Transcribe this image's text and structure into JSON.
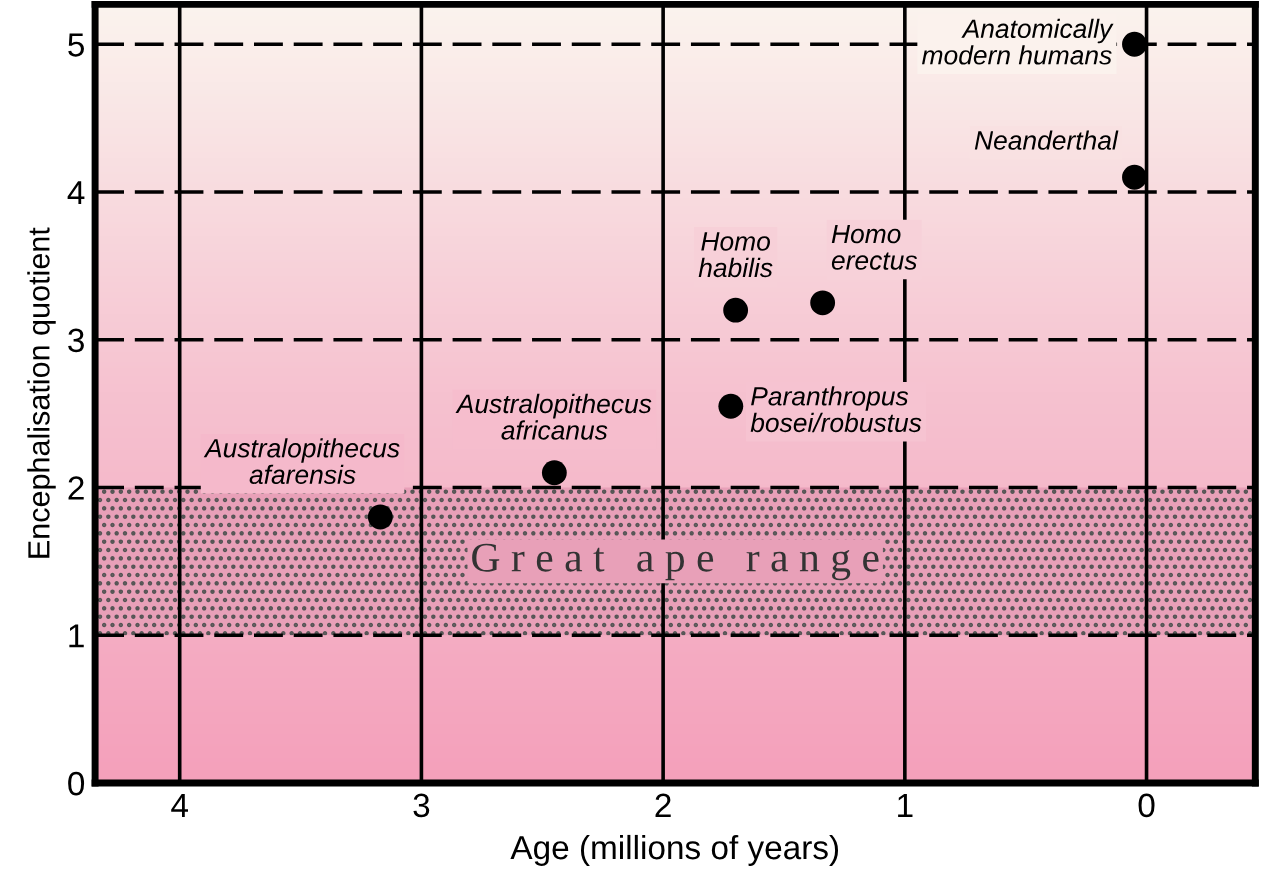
{
  "chart_data": {
    "type": "scatter",
    "xlabel": "Age (millions of years)",
    "ylabel": "Encephalisation quotient",
    "x": [
      3.17,
      2.45,
      1.72,
      1.7,
      1.34,
      0.05,
      0.05
    ],
    "values": [
      1.8,
      2.1,
      2.55,
      3.2,
      3.25,
      4.1,
      5.0
    ],
    "color": "#000000",
    "marker": "circle",
    "xlim": [
      4.35,
      -0.45
    ],
    "xticks": [
      4,
      3,
      2,
      1,
      0
    ],
    "ylim": [
      0,
      5.27
    ],
    "yticks": [
      0,
      1,
      2,
      3,
      4,
      5
    ],
    "grid": true,
    "bands": [
      {
        "axis": "y",
        "from": 1,
        "to": 2,
        "label": "G r e a t   a p e   r a n g e",
        "color": "#e8a0b8"
      }
    ],
    "annotations": [
      {
        "text": "Australopithecus\nafarensis",
        "x": 3.17,
        "y": 1.8
      },
      {
        "text": "Australopithecus\nafricanus",
        "x": 2.45,
        "y": 2.1
      },
      {
        "text": "Paranthropus\nbosei/robustus",
        "x": 1.72,
        "y": 2.55
      },
      {
        "text": "Homo\nhabilis",
        "x": 1.7,
        "y": 3.2
      },
      {
        "text": "Homo\nerectus",
        "x": 1.34,
        "y": 3.25
      },
      {
        "text": "Neanderthal",
        "x": 0.05,
        "y": 4.1
      },
      {
        "text": "Anatomically\nmodern humans",
        "x": 0.05,
        "y": 5.0
      }
    ]
  }
}
